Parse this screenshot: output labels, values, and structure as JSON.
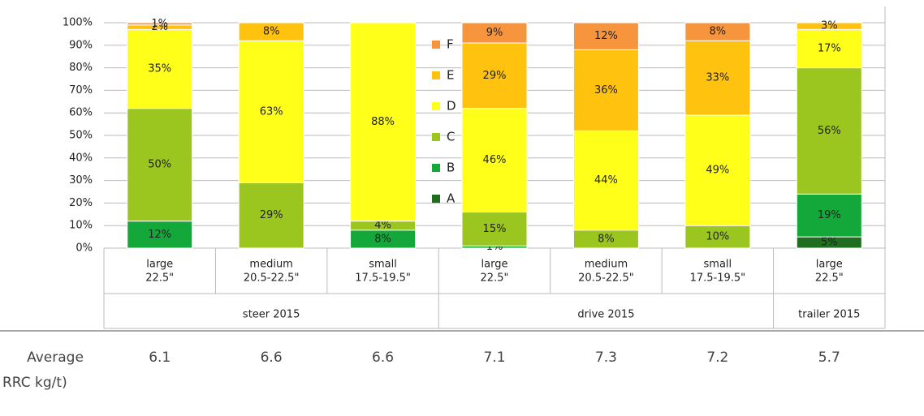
{
  "chart_data": {
    "type": "stacked_bar",
    "categories": [
      [
        "large",
        "22.5\""
      ],
      [
        "medium",
        "20.5-22.5\""
      ],
      [
        "small",
        "17.5-19.5\""
      ],
      [
        "large",
        "22.5\""
      ],
      [
        "medium",
        "20.5-22.5\""
      ],
      [
        "small",
        "17.5-19.5\""
      ],
      [
        "large",
        "22.5\""
      ]
    ],
    "groups": [
      {
        "name": "steer 2015",
        "count": 3
      },
      {
        "name": "drive 2015",
        "count": 3
      },
      {
        "name": "trailer 2015",
        "count": 1
      }
    ],
    "series": [
      {
        "name": "A",
        "color": "#1f6e1f",
        "values": [
          null,
          null,
          null,
          null,
          null,
          null,
          5
        ],
        "value_labels": [
          null,
          null,
          null,
          null,
          null,
          null,
          "5%"
        ]
      },
      {
        "name": "B",
        "color": "#14a83a",
        "values": [
          12,
          null,
          8,
          1,
          null,
          null,
          19
        ],
        "value_labels": [
          "12%",
          null,
          "8%",
          "1%",
          null,
          null,
          "19%"
        ]
      },
      {
        "name": "C",
        "color": "#9bc61f",
        "values": [
          50,
          29,
          4,
          15,
          8,
          10,
          56
        ],
        "value_labels": [
          "50%",
          "29%",
          "4%",
          "15%",
          "8%",
          "10%",
          "56%"
        ]
      },
      {
        "name": "D",
        "color": "#ffff1a",
        "values": [
          35,
          63,
          88,
          46,
          44,
          49,
          17
        ],
        "value_labels": [
          "35%",
          "63%",
          "88%",
          "46%",
          "44%",
          "49%",
          "17%"
        ]
      },
      {
        "name": "E",
        "color": "#ffc20e",
        "values": [
          2,
          8,
          null,
          29,
          36,
          33,
          3
        ],
        "value_labels": [
          "2%",
          "8%",
          null,
          "29%",
          "36%",
          "33%",
          "3%"
        ]
      },
      {
        "name": "F",
        "color": "#f7953f",
        "values": [
          1,
          null,
          null,
          9,
          12,
          8,
          null
        ],
        "value_labels": [
          "1%",
          null,
          null,
          "9%",
          "12%",
          "8%",
          null
        ]
      }
    ],
    "ylim": [
      0,
      100
    ],
    "yticks": [
      {
        "value": 0,
        "label": "0%"
      },
      {
        "value": 10,
        "label": "10%"
      },
      {
        "value": 20,
        "label": "20%"
      },
      {
        "value": 30,
        "label": "30%"
      },
      {
        "value": 40,
        "label": "40%"
      },
      {
        "value": 50,
        "label": "50%"
      },
      {
        "value": 60,
        "label": "60%"
      },
      {
        "value": 70,
        "label": "70%"
      },
      {
        "value": 80,
        "label": "80%"
      },
      {
        "value": 90,
        "label": "90%"
      },
      {
        "value": 100,
        "label": "100%"
      }
    ],
    "grid": true,
    "legend": "center"
  },
  "table": {
    "row_label": [
      "Average",
      "RRC kg/t)"
    ],
    "values": [
      6.1,
      6.6,
      6.6,
      7.1,
      7.3,
      7.2,
      5.7
    ]
  }
}
